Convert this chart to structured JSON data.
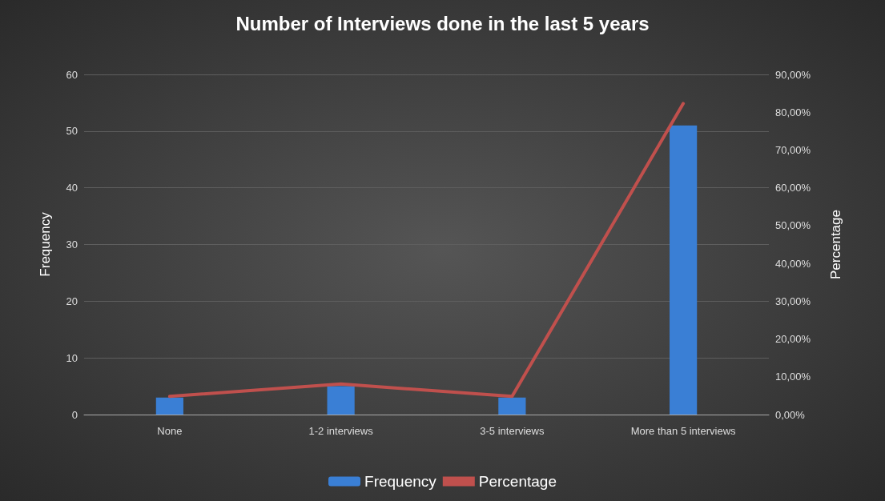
{
  "chart_data": {
    "type": "bar",
    "title": "Number of Interviews done in the last 5 years",
    "categories": [
      "None",
      "1-2 interviews",
      "3-5 interviews",
      "More than 5 interviews"
    ],
    "series": [
      {
        "name": "Frequency",
        "color": "#3a7fd5",
        "values": [
          3,
          5,
          3,
          51
        ]
      },
      {
        "name": "Percentage",
        "type": "line",
        "axis": "y2",
        "color": "#c0504d",
        "values": [
          4.8,
          8.1,
          4.8,
          82.3
        ]
      }
    ],
    "ylabel": "Frequency",
    "y2label": "Percentage",
    "ylim": [
      0,
      60
    ],
    "yticks": [
      0,
      10,
      20,
      30,
      40,
      50,
      60
    ],
    "y2lim": [
      0,
      90
    ],
    "y2ticks": [
      {
        "value": 0,
        "label": "0,00%"
      },
      {
        "value": 10,
        "label": "10,00%"
      },
      {
        "value": 20,
        "label": "20,00%"
      },
      {
        "value": 30,
        "label": "30,00%"
      },
      {
        "value": 40,
        "label": "40,00%"
      },
      {
        "value": 50,
        "label": "50,00%"
      },
      {
        "value": 60,
        "label": "60,00%"
      },
      {
        "value": 70,
        "label": "70,00%"
      },
      {
        "value": 80,
        "label": "80,00%"
      },
      {
        "value": 90,
        "label": "90,00%"
      }
    ],
    "grid": "y",
    "legend": "bottom",
    "marker": "none",
    "line_style": "solid"
  }
}
